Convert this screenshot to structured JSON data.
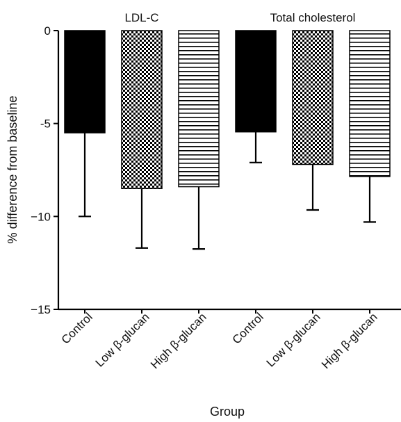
{
  "chart_data": {
    "type": "bar",
    "ylabel": "% difference from baseline",
    "xlabel": "Group",
    "ylim": [
      -15,
      0
    ],
    "yticks": [
      {
        "value": 0,
        "label": "0"
      },
      {
        "value": -5,
        "label": "-5"
      },
      {
        "value": -10,
        "label": "−10"
      },
      {
        "value": -15,
        "label": "−15"
      }
    ],
    "groups": [
      {
        "name": "LDL-C",
        "bars": [
          {
            "category": "Control",
            "value": -5.5,
            "error": 4.5,
            "pattern": "solid"
          },
          {
            "category": "Low β-glucan",
            "value": -8.5,
            "error": 3.2,
            "pattern": "checker"
          },
          {
            "category": "High β-glucan",
            "value": -8.4,
            "error": 3.35,
            "pattern": "hlines"
          }
        ]
      },
      {
        "name": "Total cholesterol",
        "bars": [
          {
            "category": "Control",
            "value": -5.45,
            "error": 1.65,
            "pattern": "solid"
          },
          {
            "category": "Low β-glucan",
            "value": -7.2,
            "error": 2.45,
            "pattern": "checker"
          },
          {
            "category": "High β-glucan",
            "value": -7.85,
            "error": 2.45,
            "pattern": "hlines"
          }
        ]
      }
    ],
    "colors": {
      "bar_fill": "#000000",
      "axis": "#000000"
    },
    "grid": false
  }
}
